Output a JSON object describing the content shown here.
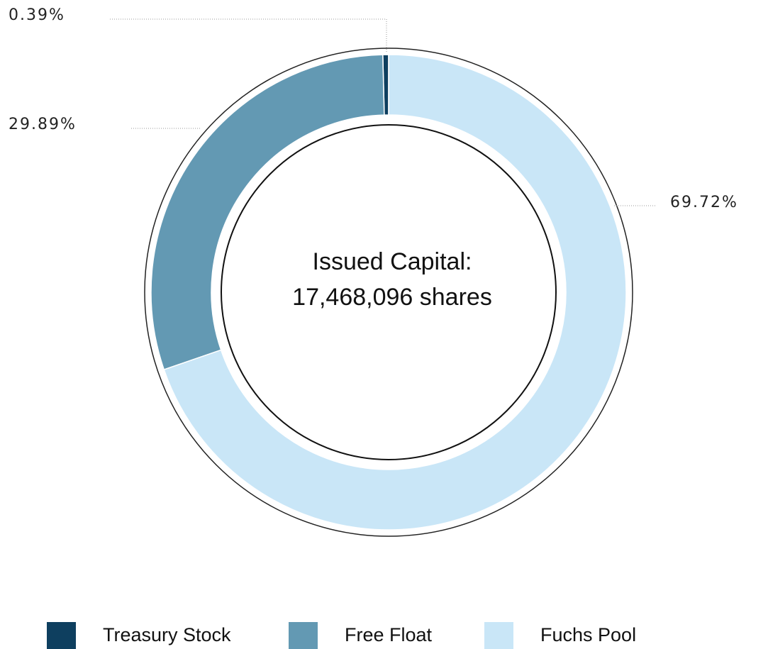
{
  "chart_data": {
    "type": "pie",
    "categories": [
      "Treasury Stock",
      "Free Float",
      "Fuchs Pool"
    ],
    "values": [
      0.39,
      29.89,
      69.72
    ],
    "value_labels": [
      "0.39%",
      "29.89%",
      "69.72%"
    ],
    "colors": [
      "#0e3f5f",
      "#6399b3",
      "#c9e6f7"
    ],
    "center_text": [
      "Issued Capital:",
      "17,468,096 shares"
    ]
  }
}
